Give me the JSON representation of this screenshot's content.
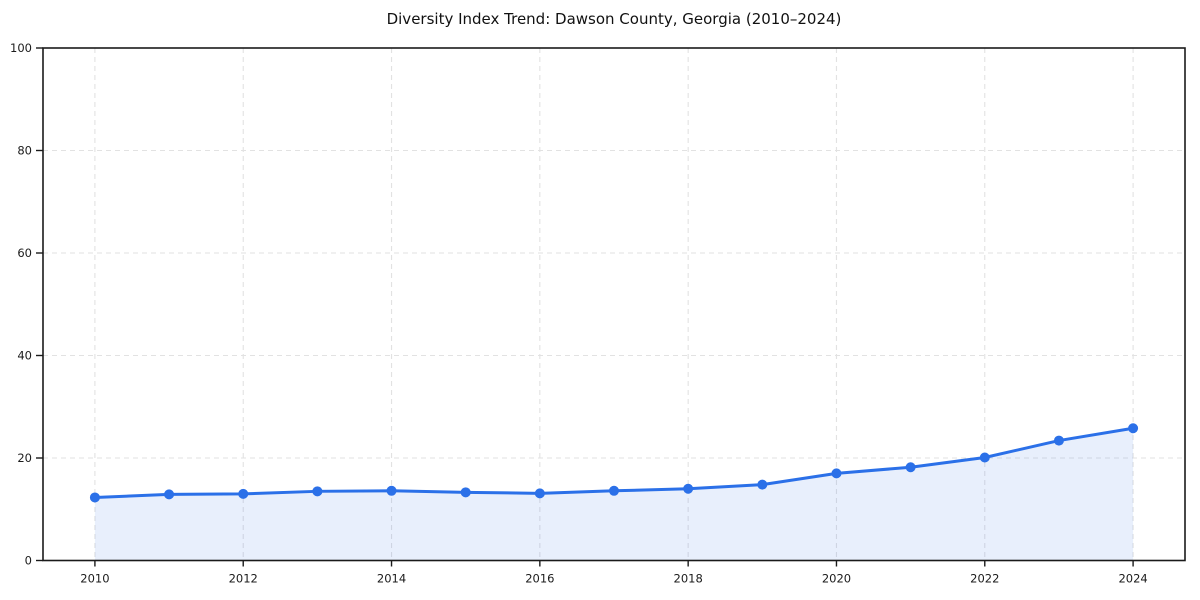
{
  "page": {
    "background_color": "#ffffff"
  },
  "chart_data": {
    "type": "line",
    "title": "Diversity Index Trend: Dawson County, Georgia (2010–2024)",
    "series_name": "Diversity Index",
    "x": [
      2010,
      2011,
      2012,
      2013,
      2014,
      2015,
      2016,
      2017,
      2018,
      2019,
      2020,
      2021,
      2022,
      2023,
      2024
    ],
    "values": [
      12.3,
      12.9,
      13.0,
      13.5,
      13.6,
      13.3,
      13.1,
      13.6,
      14.0,
      14.8,
      17.0,
      18.2,
      20.1,
      23.4,
      25.8
    ],
    "xlabel": "",
    "ylabel": "",
    "xlim": [
      2009.3,
      2024.7
    ],
    "ylim": [
      0,
      100
    ],
    "xticks": [
      2010,
      2012,
      2014,
      2016,
      2018,
      2020,
      2022,
      2024
    ],
    "yticks": [
      0,
      20,
      40,
      60,
      80,
      100
    ],
    "grid": true,
    "grid_style": "dashed",
    "legend": "none",
    "area_fill": true,
    "marker": "circle",
    "colors": {
      "line": "#2b70e8",
      "area_fill": "#2b70e8",
      "grid": "#e2e2e2",
      "spine": "#1a1a1a",
      "tick_label": "#1c1c1c",
      "title": "#111111"
    }
  }
}
